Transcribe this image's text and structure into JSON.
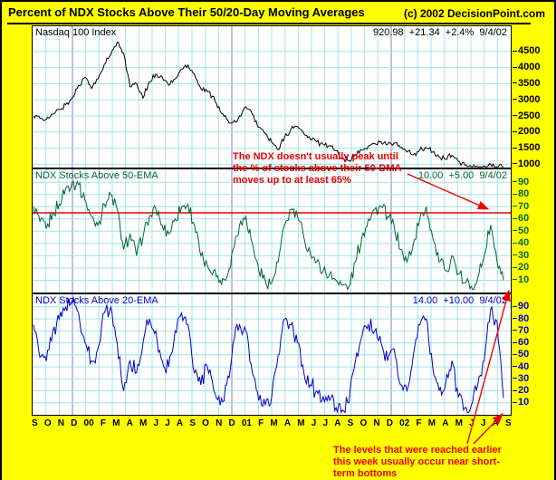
{
  "header": {
    "title": "Percent of NDX Stocks Above Their 50/20-Day Moving Averages",
    "copyright": "(c) 2002 DecisionPoint.com"
  },
  "colors": {
    "background": "#FFFF00",
    "plot_background": "#FFFFFF",
    "grid": "#A0E4EA",
    "year_line": "#8877D8",
    "red": "#EE0000",
    "black": "#000000",
    "green": "#006633",
    "blue": "#0000CC"
  },
  "annotations": {
    "peak_note": {
      "color": "#EE0000",
      "lines": [
        "The NDX doesn't usually peak until",
        "the % of stocks above their 50-DMA",
        "moves up to at least 65%"
      ]
    },
    "bottom_note": {
      "color": "#EE0000",
      "lines": [
        "The levels that were reached earlier",
        "this week usually occur near short-",
        "term bottoms"
      ]
    }
  },
  "chart_data": {
    "type": "line",
    "title": "Percent of NDX Stocks Above Their 50/20-Day Moving Averages",
    "x_range": [
      "Sep 1999",
      "Sep 2002"
    ],
    "x_months": [
      "S",
      "O",
      "N",
      "D",
      "00",
      "F",
      "M",
      "A",
      "M",
      "J",
      "J",
      "A",
      "S",
      "O",
      "N",
      "D",
      "01",
      "F",
      "M",
      "A",
      "M",
      "J",
      "J",
      "A",
      "S",
      "O",
      "N",
      "D",
      "02",
      "F",
      "M",
      "A",
      "M",
      "J",
      "J",
      "A",
      "S"
    ],
    "year_marks": [
      3,
      15,
      27
    ],
    "grid": true,
    "legend_position": "none",
    "panels": [
      {
        "name": "Nasdaq 100 Index",
        "quote": "920.98  +21.34  +2.4%  9/4/02",
        "last_value": 920.98,
        "change": "+21.34",
        "change_pct": "+2.4%",
        "date": "9/4/02",
        "series_color": "#000000",
        "text_color": "#000000",
        "ylim": [
          900,
          5280
        ],
        "yticks": [
          4500,
          4000,
          3500,
          3000,
          2500,
          2000,
          1500,
          1000
        ],
        "clamp": [
          925,
          5250
        ],
        "jitter": 110,
        "values": [
          2480,
          2430,
          2400,
          2550,
          2700,
          2850,
          3050,
          3450,
          3700,
          3350,
          3650,
          4100,
          4400,
          4780,
          4450,
          3400,
          3500,
          3050,
          3550,
          3800,
          3700,
          3450,
          3650,
          3950,
          4080,
          3800,
          3350,
          3250,
          3100,
          2650,
          2400,
          2300,
          2500,
          2780,
          2550,
          2150,
          1950,
          1680,
          1450,
          1850,
          2100,
          2180,
          1950,
          1780,
          1700,
          1620,
          1580,
          1420,
          1200,
          1120,
          1280,
          1440,
          1560,
          1640,
          1700,
          1620,
          1660,
          1520,
          1380,
          1300,
          1460,
          1510,
          1380,
          1230,
          1160,
          1280,
          1100,
          980,
          920,
          880,
          950,
          1010,
          890,
          921
        ]
      },
      {
        "name": "NDX Stocks Above 50-EMA",
        "quote": "10.00  +5.00  9/4/02",
        "last_value": 10.0,
        "change": "+5.00",
        "date": "9/4/02",
        "series_color": "#006633",
        "text_color": "#006633",
        "ylim": [
          0,
          100.5
        ],
        "yticks": [
          90,
          80,
          70,
          60,
          50,
          40,
          30,
          20,
          10
        ],
        "ref_line": 65,
        "clamp": [
          2,
          98.5
        ],
        "jitter": 7,
        "values": [
          70,
          58,
          52,
          65,
          72,
          85,
          90,
          88,
          75,
          62,
          55,
          72,
          80,
          68,
          35,
          48,
          30,
          45,
          62,
          68,
          55,
          48,
          60,
          70,
          72,
          55,
          30,
          22,
          18,
          10,
          12,
          35,
          55,
          62,
          40,
          18,
          10,
          8,
          25,
          55,
          68,
          62,
          45,
          32,
          25,
          18,
          15,
          10,
          6,
          5,
          25,
          45,
          60,
          68,
          70,
          62,
          55,
          35,
          25,
          40,
          60,
          70,
          45,
          25,
          18,
          30,
          15,
          8,
          5,
          12,
          30,
          55,
          25,
          10
        ]
      },
      {
        "name": "NDX Stocks Above 20-EMA",
        "quote": "14.00  +10.00  9/4/02",
        "last_value": 14.0,
        "change": "+10.00",
        "date": "9/4/02",
        "series_color": "#0000CC",
        "text_color": "#0000CC",
        "ylim": [
          0,
          100.5
        ],
        "yticks": [
          90,
          80,
          70,
          60,
          50,
          40,
          30,
          20,
          10
        ],
        "clamp": [
          2,
          98.5
        ],
        "jitter": 9,
        "values": [
          75,
          48,
          45,
          70,
          80,
          90,
          95,
          85,
          60,
          45,
          55,
          85,
          90,
          60,
          20,
          45,
          35,
          60,
          80,
          70,
          45,
          40,
          70,
          85,
          75,
          35,
          25,
          40,
          20,
          8,
          25,
          60,
          75,
          70,
          35,
          12,
          8,
          15,
          50,
          80,
          75,
          60,
          35,
          25,
          20,
          15,
          12,
          6,
          4,
          10,
          45,
          65,
          75,
          70,
          60,
          45,
          55,
          25,
          20,
          50,
          75,
          80,
          40,
          20,
          25,
          45,
          15,
          6,
          8,
          25,
          45,
          88,
          78,
          14
        ]
      }
    ]
  }
}
